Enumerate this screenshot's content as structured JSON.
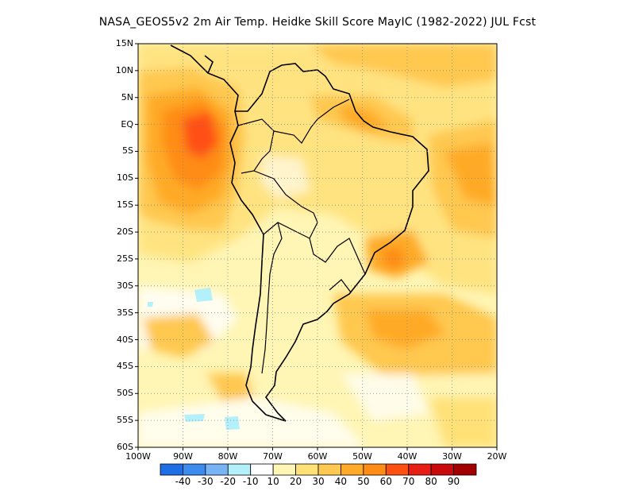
{
  "title": "NASA_GEOS5v2  2m Air Temp. Heidke Skill Score MayIC (1982-2022) JUL Fcst",
  "map": {
    "lat_labels": [
      "15N",
      "10N",
      "5N",
      "EQ",
      "5S",
      "10S",
      "15S",
      "20S",
      "25S",
      "30S",
      "35S",
      "40S",
      "45S",
      "50S",
      "55S",
      "60S"
    ],
    "lon_labels": [
      "100W",
      "90W",
      "80W",
      "70W",
      "60W",
      "50W",
      "40W",
      "30W",
      "20W"
    ],
    "lat_range": [
      -60,
      15
    ],
    "lon_range": [
      -100,
      -20
    ],
    "grid": "dotted",
    "projection": "lat-lon"
  },
  "colorbar": {
    "colors": [
      "#1e6ee6",
      "#3c8cf0",
      "#78b4f5",
      "#b4f0fa",
      "#ffffff",
      "#fff5b4",
      "#ffe178",
      "#ffc850",
      "#ffaa28",
      "#ff8c14",
      "#ff5014",
      "#e61e14",
      "#c80a0a",
      "#a00000"
    ],
    "labels": [
      "-40",
      "-30",
      "-20",
      "-10",
      "10",
      "20",
      "30",
      "40",
      "50",
      "60",
      "70",
      "80",
      "90"
    ]
  }
}
